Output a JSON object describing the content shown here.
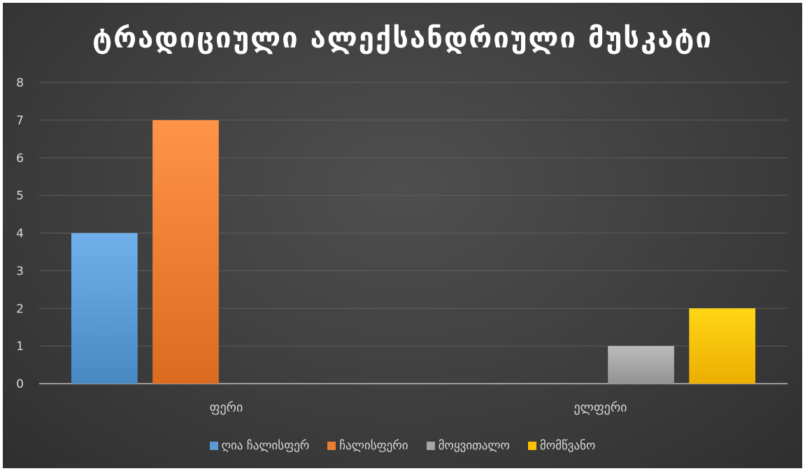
{
  "chart_data": {
    "type": "bar",
    "title": "ტრადიციული ალექსანდრიული მუსკატი",
    "categories": [
      "ფერი",
      "ელფერი"
    ],
    "series": [
      {
        "name": "ღია ჩალისფერ",
        "values": [
          4,
          0
        ],
        "color": "#5b9bd5"
      },
      {
        "name": "ჩალისფერი",
        "values": [
          7,
          0
        ],
        "color": "#ed7d31"
      },
      {
        "name": "მოყვითალო",
        "values": [
          0,
          1
        ],
        "color": "#a5a5a5"
      },
      {
        "name": "მომწვანო",
        "values": [
          0,
          2
        ],
        "color": "#ffc000"
      }
    ],
    "ylim": [
      0,
      8
    ],
    "yticks": [
      0,
      1,
      2,
      3,
      4,
      5,
      6,
      7,
      8
    ],
    "grid": true,
    "legend": "bottom",
    "xlabel": "",
    "ylabel": ""
  }
}
